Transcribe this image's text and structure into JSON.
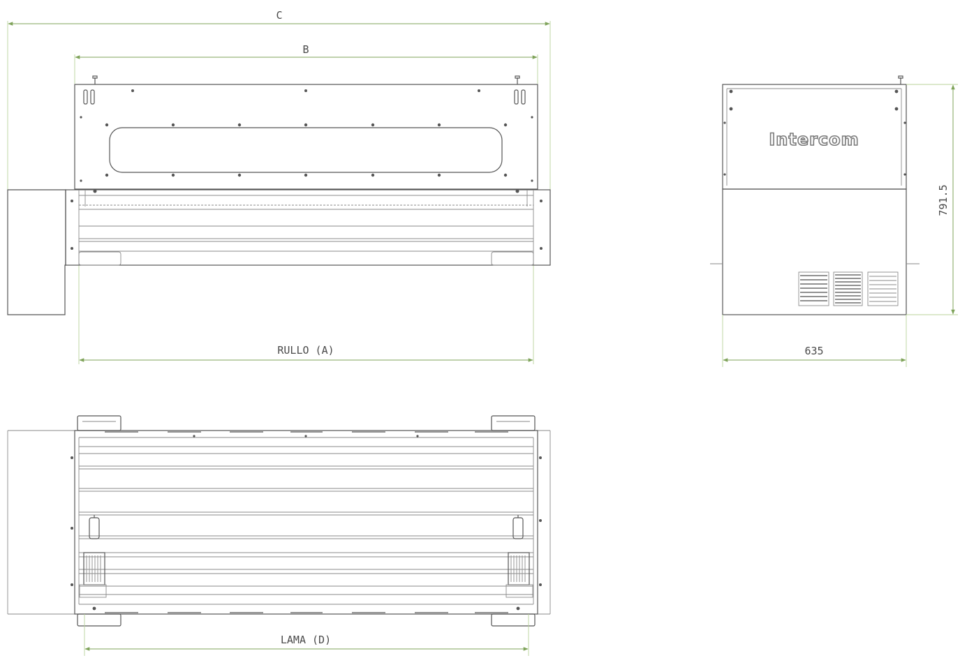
{
  "brand": {
    "logo_text": "Intercom"
  },
  "dimensions": {
    "overall_width_label": "C",
    "housing_width_label": "B",
    "roller_label": "RULLO (A)",
    "depth_label": "635",
    "height_label": "791.5",
    "blade_label": "LAMA (D)"
  },
  "colors": {
    "outline": "#555555",
    "dimension_line": "#7fa35a",
    "extension_line": "#b8d39a"
  }
}
